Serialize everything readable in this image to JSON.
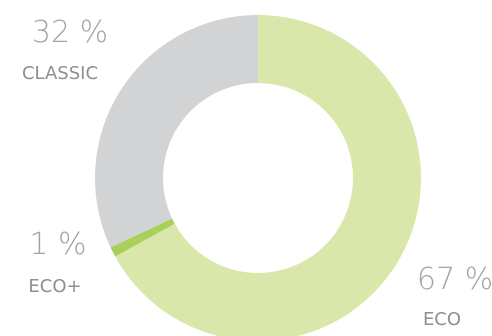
{
  "chart_data": {
    "type": "pie",
    "donut": true,
    "legend": "labels beside slices",
    "slices": [
      {
        "label": "ECO",
        "percent_text": "67 %",
        "value": 67,
        "color": "#d9e8aa"
      },
      {
        "label": "ECO+",
        "percent_text": "1 %",
        "value": 1,
        "color": "#a9d05d"
      },
      {
        "label": "CLASSIC",
        "percent_text": "32 %",
        "value": 32,
        "color": "#d2d3d5"
      }
    ]
  }
}
